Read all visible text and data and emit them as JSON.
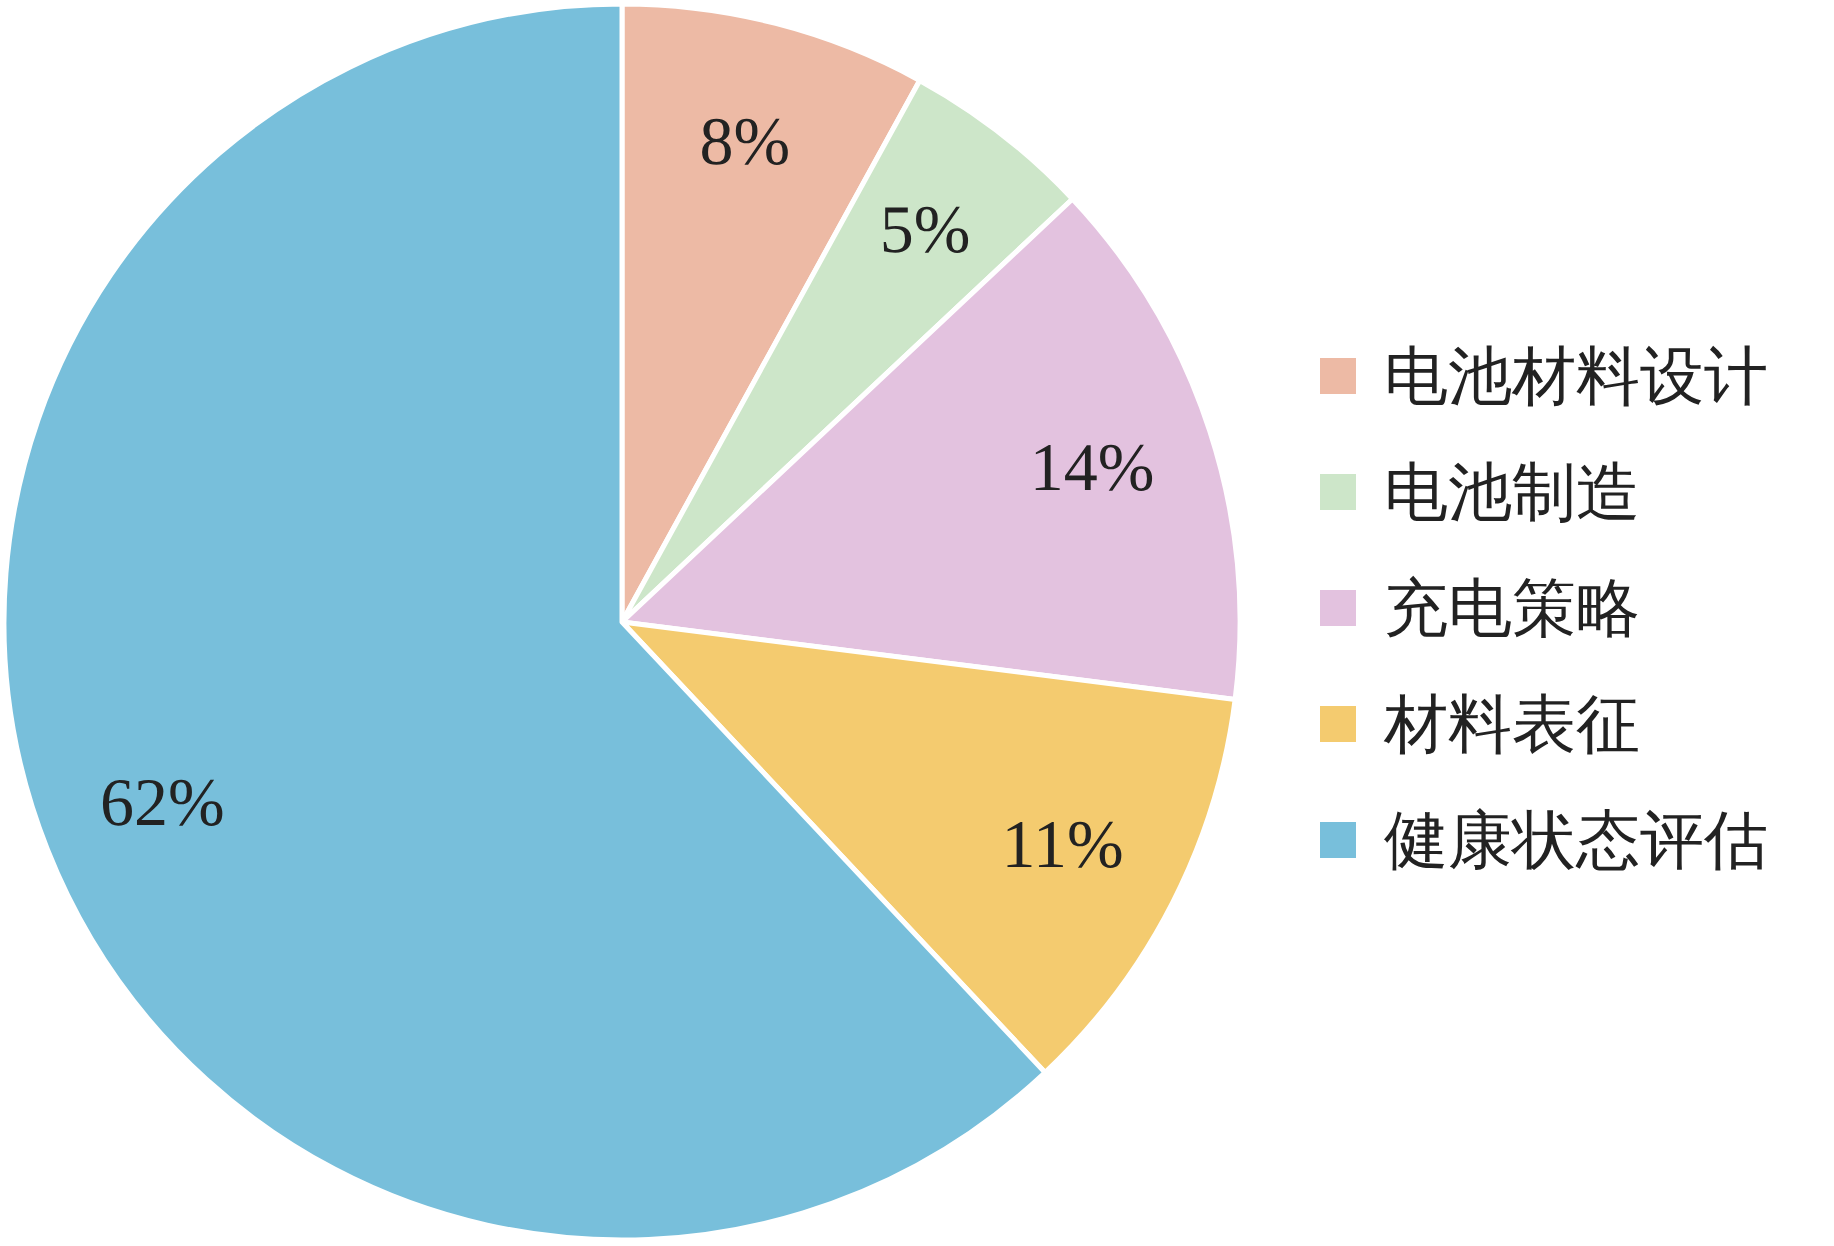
{
  "chart_data": {
    "type": "pie",
    "categories": [
      "电池材料设计",
      "电池制造",
      "充电策略",
      "材料表征",
      "健康状态评估"
    ],
    "values": [
      8,
      5,
      14,
      11,
      62
    ],
    "colors": [
      "#edbaa5",
      "#cde6c9",
      "#e3c2df",
      "#f4cb6f",
      "#78bfdb"
    ],
    "value_labels": [
      "8%",
      "5%",
      "14%",
      "11%",
      "62%"
    ],
    "legend": "right"
  }
}
